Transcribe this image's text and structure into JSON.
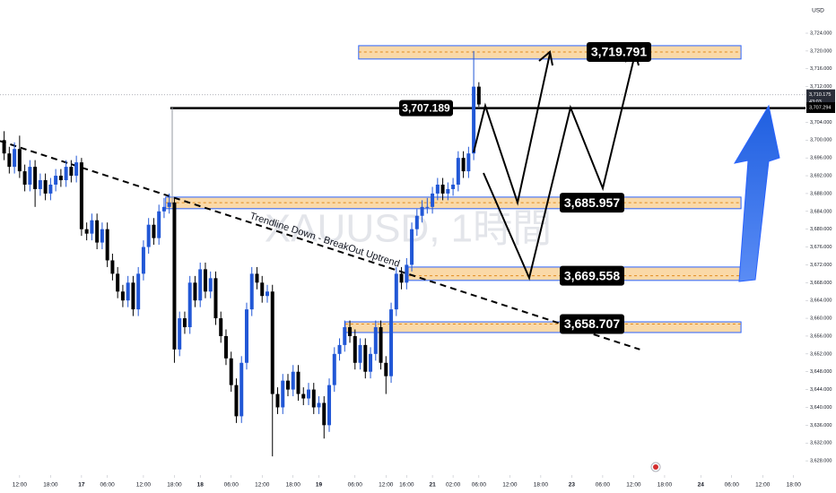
{
  "chart_data": {
    "type": "candlestick",
    "watermark": "XAUUSD, 1時間",
    "currency": "USD",
    "up_color": "#2157d6",
    "down_color": "#000000",
    "xlim": [
      -3.8,
      152.3
    ],
    "ylim": [
      3624.8,
      3731.45
    ],
    "xticks": [
      {
        "value": 0,
        "label": "12:00"
      },
      {
        "value": 6,
        "label": "18:00"
      },
      {
        "value": 12,
        "label": "17"
      },
      {
        "value": 17,
        "label": "06:00"
      },
      {
        "value": 24,
        "label": "12:00"
      },
      {
        "value": 30,
        "label": "18:00"
      },
      {
        "value": 35,
        "label": "18"
      },
      {
        "value": 41,
        "label": "06:00"
      },
      {
        "value": 47,
        "label": "12:00"
      },
      {
        "value": 53,
        "label": "18:00"
      },
      {
        "value": 58,
        "label": "19"
      },
      {
        "value": 65,
        "label": "06:00"
      },
      {
        "value": 71,
        "label": "12:00"
      },
      {
        "value": 75,
        "label": "16:00"
      },
      {
        "value": 80,
        "label": "21"
      },
      {
        "value": 84,
        "label": "02:00"
      },
      {
        "value": 89,
        "label": "06:00"
      },
      {
        "value": 95,
        "label": "12:00"
      },
      {
        "value": 101,
        "label": "18:00"
      },
      {
        "value": 107,
        "label": "23"
      },
      {
        "value": 113,
        "label": "06:00"
      },
      {
        "value": 119,
        "label": "12:00"
      },
      {
        "value": 125,
        "label": "18:00"
      },
      {
        "value": 132,
        "label": "24"
      },
      {
        "value": 138,
        "label": "06:00"
      },
      {
        "value": 144,
        "label": "12:00"
      },
      {
        "value": 150,
        "label": "18:00"
      }
    ],
    "yticks": [
      {
        "value": 3628,
        "label": "3,628.000"
      },
      {
        "value": 3632,
        "label": "3,632.000"
      },
      {
        "value": 3636,
        "label": "3,636.000"
      },
      {
        "value": 3640,
        "label": "3,640.000"
      },
      {
        "value": 3644,
        "label": "3,644.000"
      },
      {
        "value": 3648,
        "label": "3,648.000"
      },
      {
        "value": 3652,
        "label": "3,652.000"
      },
      {
        "value": 3656,
        "label": "3,656.000"
      },
      {
        "value": 3660,
        "label": "3,660.000"
      },
      {
        "value": 3664,
        "label": "3,664.000"
      },
      {
        "value": 3668,
        "label": "3,668.000"
      },
      {
        "value": 3672,
        "label": "3,672.000"
      },
      {
        "value": 3676,
        "label": "3,676.000"
      },
      {
        "value": 3680,
        "label": "3,680.000"
      },
      {
        "value": 3684,
        "label": "3,684.000"
      },
      {
        "value": 3688,
        "label": "3,688.000"
      },
      {
        "value": 3692,
        "label": "3,692.000"
      },
      {
        "value": 3696,
        "label": "3,696.000"
      },
      {
        "value": 3700,
        "label": "3,700.000"
      },
      {
        "value": 3704,
        "label": "3,704.000"
      },
      {
        "value": 3708,
        "label": "3,708.000"
      },
      {
        "value": 3712,
        "label": "3,712.000"
      },
      {
        "value": 3716,
        "label": "3,716.000"
      },
      {
        "value": 3720,
        "label": "3,720.000"
      },
      {
        "value": 3724,
        "label": "3,724.000"
      }
    ],
    "x": [
      -3,
      -2,
      -1,
      0,
      1,
      2,
      3,
      4,
      5,
      6,
      7,
      8,
      9,
      10,
      11,
      12,
      13,
      14,
      15,
      16,
      17,
      18,
      19,
      20,
      21,
      22,
      23,
      24,
      25,
      26,
      27,
      28,
      29,
      30,
      31,
      32,
      33,
      34,
      35,
      36,
      37,
      38,
      39,
      40,
      41,
      42,
      43,
      44,
      45,
      46,
      47,
      48,
      49,
      50,
      51,
      52,
      53,
      54,
      55,
      56,
      57,
      58,
      59,
      60,
      61,
      62,
      63,
      64,
      65,
      66,
      67,
      68,
      69,
      70,
      71,
      72,
      73,
      74,
      75,
      76,
      77,
      78,
      79,
      80,
      81,
      82,
      83,
      84,
      85,
      86,
      87,
      88,
      89
    ],
    "open": [
      3700,
      3697,
      3694,
      3698,
      3693,
      3690,
      3694,
      3689,
      3691,
      3688,
      3690,
      3692,
      3691,
      3694,
      3692,
      3695,
      3680,
      3679,
      3682,
      3677,
      3680,
      3673,
      3670,
      3666,
      3664,
      3668,
      3662,
      3670,
      3676,
      3681,
      3678,
      3684,
      3685,
      3686,
      3653,
      3660,
      3658,
      3668,
      3664,
      3671,
      3666,
      3669,
      3660,
      3656,
      3651,
      3645,
      3638,
      3650,
      3662,
      3670,
      3668,
      3665,
      3666,
      3643,
      3640,
      3646,
      3644,
      3648,
      3643,
      3642,
      3644,
      3640,
      3641,
      3636,
      3645,
      3652,
      3654,
      3658,
      3656,
      3650,
      3654,
      3648,
      3652,
      3658,
      3650,
      3647,
      3662,
      3670,
      3668,
      3672,
      3680,
      3683,
      3685,
      3685,
      3688,
      3690,
      3688,
      3689,
      3690,
      3696,
      3693,
      3697,
      3712
    ],
    "high": [
      3702,
      3698.5,
      3699.5,
      3701,
      3694.5,
      3695.5,
      3695.5,
      3692.5,
      3692.5,
      3691.5,
      3693.5,
      3693.5,
      3695.5,
      3695.5,
      3696.5,
      3696,
      3681.5,
      3683.5,
      3683.5,
      3681.5,
      3681.5,
      3674.5,
      3671.5,
      3667.5,
      3669.5,
      3669.5,
      3671.5,
      3677.5,
      3682.5,
      3682.5,
      3685.5,
      3687,
      3688,
      3687,
      3661.5,
      3661.5,
      3669.5,
      3669.5,
      3672.5,
      3672.5,
      3670.5,
      3670.5,
      3661.5,
      3657.5,
      3652.5,
      3646.5,
      3651.5,
      3663.5,
      3671.5,
      3671.5,
      3669.5,
      3667.5,
      3667.5,
      3644.5,
      3647.5,
      3647.5,
      3649.5,
      3649.5,
      3644.5,
      3645.5,
      3645.5,
      3642.5,
      3642.5,
      3646.5,
      3653.5,
      3655.5,
      3659.5,
      3659.5,
      3657.5,
      3655.5,
      3655.5,
      3653.5,
      3659.5,
      3659.5,
      3651.5,
      3663.5,
      3671.5,
      3671.5,
      3673.5,
      3681.5,
      3684.5,
      3686.5,
      3687,
      3689.5,
      3691.5,
      3691.5,
      3690.5,
      3691.5,
      3697.5,
      3697.5,
      3698.5,
      3720,
      3713
    ],
    "low": [
      3695.5,
      3692.5,
      3692.5,
      3691.5,
      3688.5,
      3688.5,
      3685,
      3687.5,
      3686.5,
      3686.5,
      3688.5,
      3689.5,
      3689.5,
      3690.5,
      3690.5,
      3678.5,
      3677.5,
      3677.5,
      3675.5,
      3675.5,
      3671.5,
      3668.5,
      3664.5,
      3662.5,
      3662.5,
      3660.5,
      3660.5,
      3668.5,
      3674.5,
      3676.5,
      3676.5,
      3682.5,
      3683.5,
      3650,
      3651.5,
      3656.5,
      3656.5,
      3662.5,
      3662.5,
      3664.5,
      3664.5,
      3658.5,
      3654.5,
      3649.5,
      3643.5,
      3636.5,
      3636.5,
      3648.5,
      3660.5,
      3666.5,
      3663.5,
      3663.5,
      3629,
      3638.5,
      3638.5,
      3642.5,
      3642.5,
      3641.5,
      3640.5,
      3640.5,
      3638.5,
      3638.5,
      3633,
      3634.5,
      3643.5,
      3650.5,
      3652.5,
      3654.5,
      3648.5,
      3648.5,
      3646.5,
      3646.5,
      3650.5,
      3648.5,
      3643,
      3645.5,
      3660.5,
      3666.5,
      3666.5,
      3670.5,
      3678.5,
      3681.5,
      3683.5,
      3683.5,
      3686.5,
      3686.5,
      3686.5,
      3687.5,
      3688.5,
      3691.5,
      3691.5,
      3695.5,
      3707.5
    ],
    "close": [
      3697,
      3694,
      3698,
      3693,
      3690,
      3694,
      3689,
      3691,
      3688,
      3690,
      3692,
      3691,
      3694,
      3692,
      3695,
      3680,
      3679,
      3682,
      3677,
      3680,
      3673,
      3670,
      3666,
      3664,
      3668,
      3662,
      3670,
      3676,
      3681,
      3678,
      3684,
      3685,
      3686,
      3653,
      3660,
      3658,
      3668,
      3664,
      3671,
      3666,
      3669,
      3660,
      3656,
      3651,
      3645,
      3638,
      3650,
      3662,
      3670,
      3668,
      3665,
      3666,
      3643,
      3640,
      3646,
      3644,
      3648,
      3643,
      3642,
      3644,
      3640,
      3641,
      3636,
      3645,
      3652,
      3654,
      3658,
      3656,
      3650,
      3654,
      3648,
      3652,
      3658,
      3650,
      3647,
      3662,
      3670,
      3668,
      3672,
      3680,
      3683,
      3685,
      3685,
      3688,
      3690,
      3688,
      3689,
      3690,
      3696,
      3693,
      3697,
      3712,
      3708
    ],
    "levels": [
      {
        "label": "3,719.791",
        "value": 3719.791,
        "zone": [
          3718.2,
          3721.2
        ],
        "from": 65.7,
        "to": 139.8
      },
      {
        "label": "3,707.189",
        "value": 3707.189,
        "from": 29.2,
        "to": 152.3
      },
      {
        "label": "3,685.957",
        "value": 3685.957,
        "zone": [
          3684.6,
          3687.2
        ],
        "from": 28.3,
        "to": 139.8
      },
      {
        "label": "3,669.558",
        "value": 3669.558,
        "zone": [
          3668.5,
          3671.5
        ],
        "from": 75.3,
        "to": 139.8
      },
      {
        "label": "3,658.707",
        "value": 3658.707,
        "zone": [
          3656.8,
          3659.2
        ],
        "from": 63.1,
        "to": 139.8
      }
    ],
    "trendline": {
      "label": "Trendline Down - BreakOut Uptrend",
      "points": [
        [
          -3.8,
          3699.8
        ],
        [
          120.2,
          3653
        ]
      ]
    },
    "price_labels": [
      {
        "value": 3710.175,
        "label": "3,710.175",
        "timer": "43:03"
      },
      {
        "value": 3707.294,
        "label": "3,707.294"
      }
    ]
  }
}
